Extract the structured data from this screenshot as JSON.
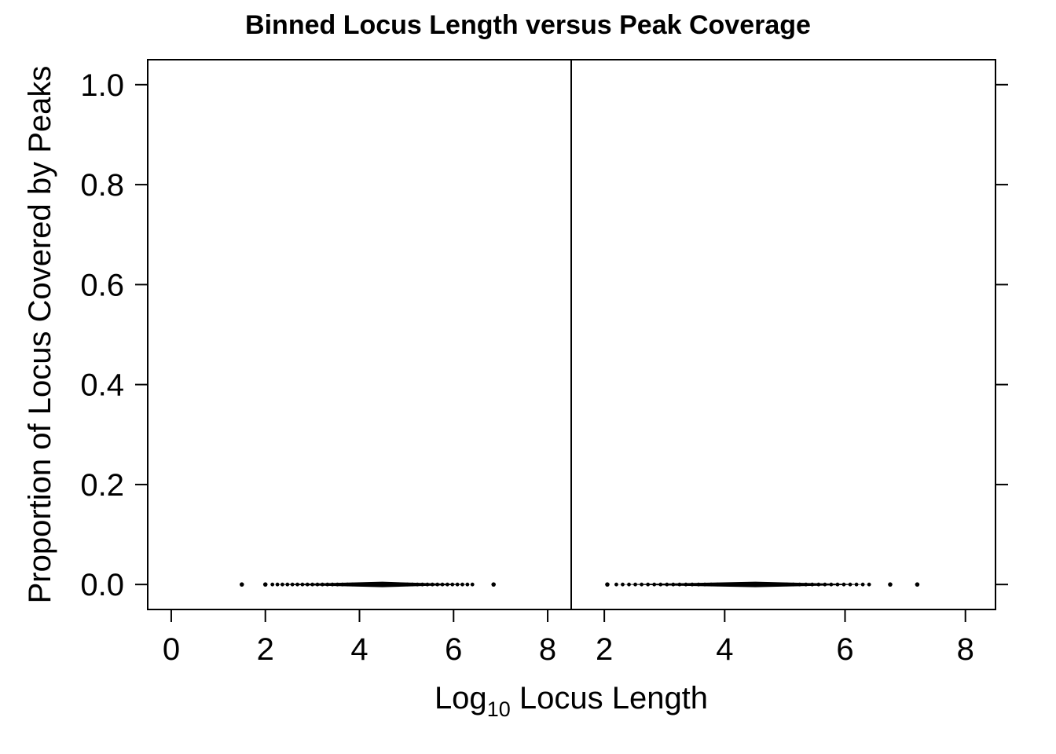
{
  "chart_data": {
    "type": "scatter",
    "title": "Binned Locus Length versus Peak Coverage",
    "xlabel": {
      "prefix": "Log",
      "subscript": "10",
      "suffix": " Locus Length"
    },
    "ylabel": "Proportion of Locus Covered by Peaks",
    "y_axis": {
      "ylim": [
        -0.05,
        1.05
      ],
      "ticks": [
        0.0,
        0.2,
        0.4,
        0.6,
        0.8,
        1.0
      ],
      "tick_labels": [
        "0.0",
        "0.2",
        "0.4",
        "0.6",
        "0.8",
        "1.0"
      ]
    },
    "grid": false,
    "panels": [
      {
        "xlim": [
          -0.5,
          8.5
        ],
        "ticks": [
          0,
          2,
          4,
          6,
          8
        ],
        "tick_labels": [
          "0",
          "2",
          "4",
          "6",
          "8"
        ],
        "isolated_points": [
          [
            1.5,
            0.0
          ],
          [
            2.0,
            0.0
          ],
          [
            6.85,
            0.0
          ]
        ],
        "dense_run": {
          "x_start": 2.15,
          "x_end": 6.4,
          "y": 0.0
        }
      },
      {
        "xlim": [
          1.45,
          8.5
        ],
        "ticks": [
          2,
          4,
          6,
          8
        ],
        "tick_labels": [
          "2",
          "4",
          "6",
          "8"
        ],
        "isolated_points": [
          [
            2.05,
            0.0
          ],
          [
            6.75,
            0.0
          ],
          [
            7.2,
            0.0
          ]
        ],
        "dense_run": {
          "x_start": 2.2,
          "x_end": 6.4,
          "y": 0.0
        }
      }
    ]
  }
}
